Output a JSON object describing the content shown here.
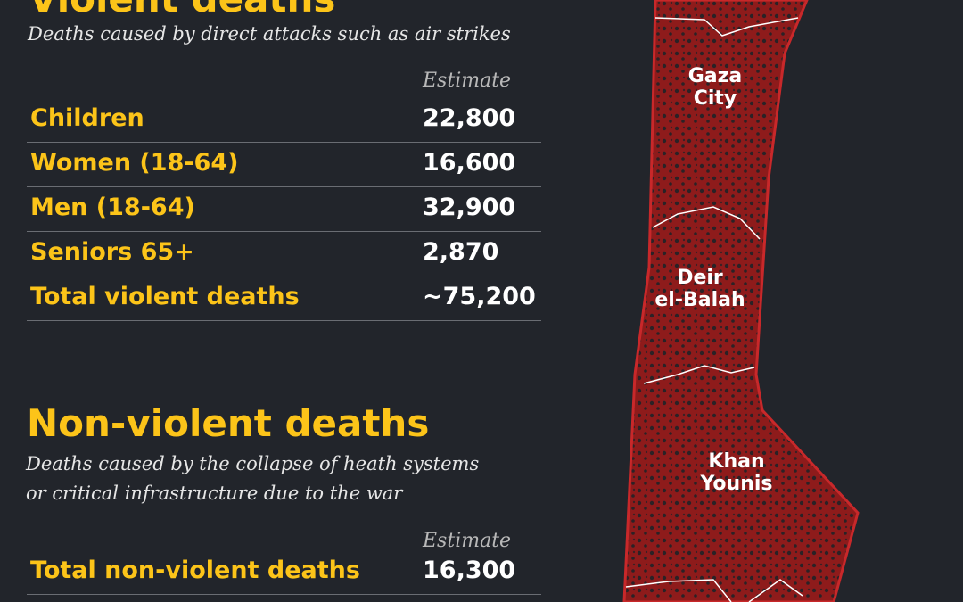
{
  "violent": {
    "title": "Violent deaths",
    "subtitle": "Deaths caused by direct attacks such as air strikes",
    "column_header": "Estimate",
    "rows": [
      [
        "Children",
        "22,800"
      ],
      [
        "Women (18-64)",
        "16,600"
      ],
      [
        "Men (18-64)",
        "32,900"
      ],
      [
        "Seniors 65+",
        "2,870"
      ],
      [
        "Total violent deaths",
        "~75,200"
      ]
    ]
  },
  "non_violent": {
    "title": "Non-violent deaths",
    "subtitle_lines": [
      "Deaths caused by the collapse of heath systems",
      "or critical infrastructure due to the war"
    ],
    "column_header": "Estimate",
    "rows": [
      [
        "Total non-violent deaths",
        "16,300"
      ]
    ]
  },
  "map": {
    "labels": [
      [
        "Gaza",
        "City"
      ],
      [
        "Deir",
        "el-Balah"
      ],
      [
        "Khan",
        "Younis"
      ]
    ]
  }
}
